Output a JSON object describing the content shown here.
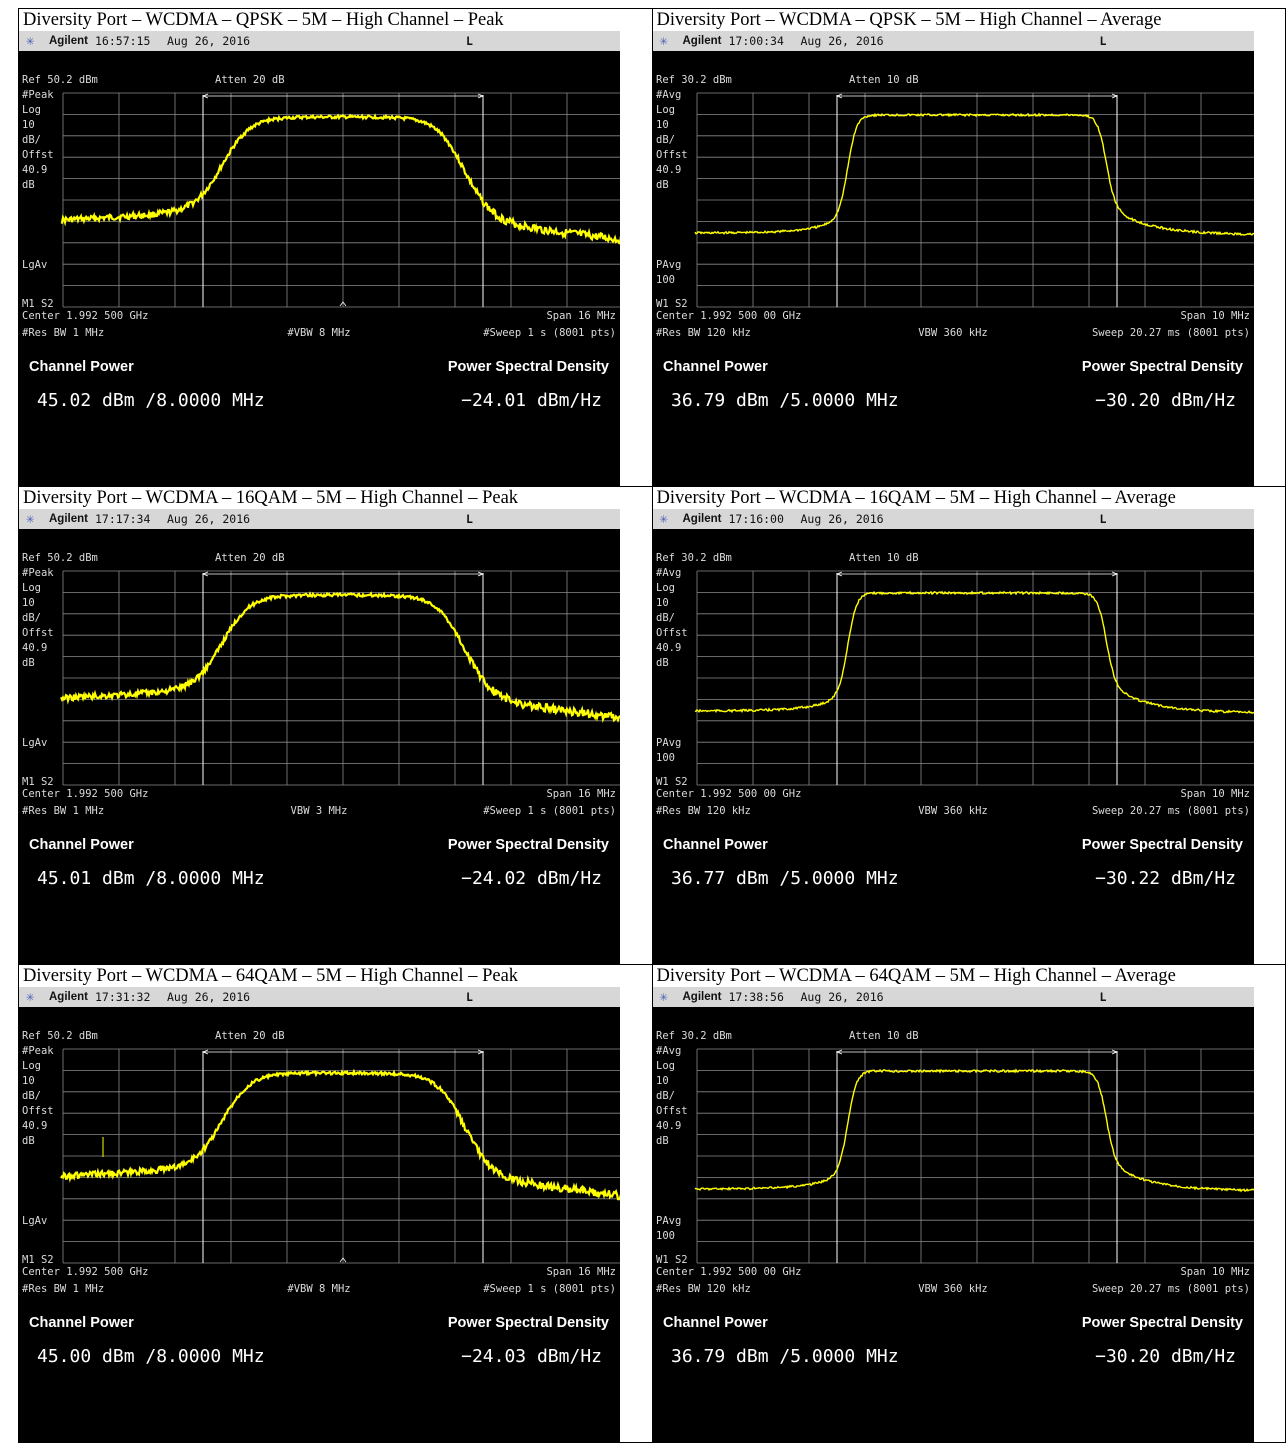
{
  "cells": [
    {
      "title": "Diversity Port – WCDMA – QPSK – 5M – High Channel – Peak",
      "brand": "Agilent",
      "time": "16:57:15",
      "date": "Aug 26, 2016",
      "flag": "L",
      "ref": "Ref 50.2 dBm",
      "atten": "Atten 20 dB",
      "detector": "#Peak",
      "scale": [
        "Log",
        "10",
        "dB/",
        "Offst",
        "40.9",
        "dB"
      ],
      "avg_label": [
        "LgAv"
      ],
      "markers": "M1  S2",
      "center": "Center 1.992 500 GHz",
      "span": "Span 16 MHz",
      "rbw": "#Res BW 1 MHz",
      "vbw": "#VBW 8 MHz",
      "sweep": "#Sweep 1 s (8001 pts)",
      "channel_power_label": "Channel Power",
      "psd_label": "Power Spectral Density",
      "channel_power": "45.02 dBm /8.0000 MHz",
      "psd": "−24.01 dBm/Hz",
      "caret": true,
      "spur": false
    },
    {
      "title": "Diversity Port – WCDMA – QPSK – 5M – High Channel – Average",
      "brand": "Agilent",
      "time": "17:00:34",
      "date": "Aug 26, 2016",
      "flag": "L",
      "ref": "Ref 30.2 dBm",
      "atten": "Atten 10 dB",
      "detector": "#Avg",
      "scale": [
        "Log",
        "10",
        "dB/",
        "Offst",
        "40.9",
        "dB"
      ],
      "avg_label": [
        "PAvg",
        "100"
      ],
      "markers": "W1  S2",
      "center": "Center 1.992 500 00 GHz",
      "span": "Span 10 MHz",
      "rbw": "#Res BW 120 kHz",
      "vbw": "VBW 360 kHz",
      "sweep": "Sweep 20.27 ms (8001 pts)",
      "channel_power_label": "Channel Power",
      "psd_label": "Power Spectral Density",
      "channel_power": "36.79 dBm /5.0000 MHz",
      "psd": "−30.20 dBm/Hz",
      "caret": false,
      "spur": false
    },
    {
      "title": "Diversity Port – WCDMA – 16QAM – 5M – High Channel – Peak",
      "brand": "Agilent",
      "time": "17:17:34",
      "date": "Aug 26, 2016",
      "flag": "L",
      "ref": "Ref 50.2 dBm",
      "atten": "Atten 20 dB",
      "detector": "#Peak",
      "scale": [
        "Log",
        "10",
        "dB/",
        "Offst",
        "40.9",
        "dB"
      ],
      "avg_label": [
        "LgAv"
      ],
      "markers": "M1  S2",
      "center": "Center 1.992 500 GHz",
      "span": "Span 16 MHz",
      "rbw": "#Res BW 1 MHz",
      "vbw": "VBW 3 MHz",
      "sweep": "#Sweep 1 s (8001 pts)",
      "channel_power_label": "Channel Power",
      "psd_label": "Power Spectral Density",
      "channel_power": "45.01 dBm /8.0000 MHz",
      "psd": "−24.02 dBm/Hz",
      "caret": false,
      "spur": false
    },
    {
      "title": "Diversity Port – WCDMA – 16QAM – 5M – High Channel – Average",
      "brand": "Agilent",
      "time": "17:16:00",
      "date": "Aug 26, 2016",
      "flag": "L",
      "ref": "Ref 30.2 dBm",
      "atten": "Atten 10 dB",
      "detector": "#Avg",
      "scale": [
        "Log",
        "10",
        "dB/",
        "Offst",
        "40.9",
        "dB"
      ],
      "avg_label": [
        "PAvg",
        "100"
      ],
      "markers": "W1  S2",
      "center": "Center 1.992 500 00 GHz",
      "span": "Span 10 MHz",
      "rbw": "#Res BW 120 kHz",
      "vbw": "VBW 360 kHz",
      "sweep": "Sweep 20.27 ms (8001 pts)",
      "channel_power_label": "Channel Power",
      "psd_label": "Power Spectral Density",
      "channel_power": "36.77 dBm /5.0000 MHz",
      "psd": "−30.22 dBm/Hz",
      "caret": false,
      "spur": false
    },
    {
      "title": "Diversity Port – WCDMA – 64QAM – 5M – High Channel – Peak",
      "brand": "Agilent",
      "time": "17:31:32",
      "date": "Aug 26, 2016",
      "flag": "L",
      "ref": "Ref 50.2 dBm",
      "atten": "Atten 20 dB",
      "detector": "#Peak",
      "scale": [
        "Log",
        "10",
        "dB/",
        "Offst",
        "40.9",
        "dB"
      ],
      "avg_label": [
        "LgAv"
      ],
      "markers": "M1  S2",
      "center": "Center 1.992 500 GHz",
      "span": "Span 16 MHz",
      "rbw": "#Res BW 1 MHz",
      "vbw": "#VBW 8 MHz",
      "sweep": "#Sweep 1 s (8001 pts)",
      "channel_power_label": "Channel Power",
      "psd_label": "Power Spectral Density",
      "channel_power": "45.00 dBm /8.0000 MHz",
      "psd": "−24.03 dBm/Hz",
      "caret": true,
      "spur": true
    },
    {
      "title": "Diversity Port – WCDMA – 64QAM – 5M – High Channel – Average",
      "brand": "Agilent",
      "time": "17:38:56",
      "date": "Aug 26, 2016",
      "flag": "L",
      "ref": "Ref 30.2 dBm",
      "atten": "Atten 10 dB",
      "detector": "#Avg",
      "scale": [
        "Log",
        "10",
        "dB/",
        "Offst",
        "40.9",
        "dB"
      ],
      "avg_label": [
        "PAvg",
        "100"
      ],
      "markers": "W1  S2",
      "center": "Center 1.992 500 00 GHz",
      "span": "Span 10 MHz",
      "rbw": "#Res BW 120 kHz",
      "vbw": "VBW 360 kHz",
      "sweep": "Sweep 20.27 ms (8001 pts)",
      "channel_power_label": "Channel Power",
      "psd_label": "Power Spectral Density",
      "channel_power": "36.79 dBm /5.0000 MHz",
      "psd": "−30.20 dBm/Hz",
      "caret": false,
      "spur": false
    }
  ],
  "colors": {
    "trace": "#ffff00",
    "grid": "#8a8a8a",
    "screen_bg": "#000000",
    "topbar_bg": "#d7d7d7"
  }
}
